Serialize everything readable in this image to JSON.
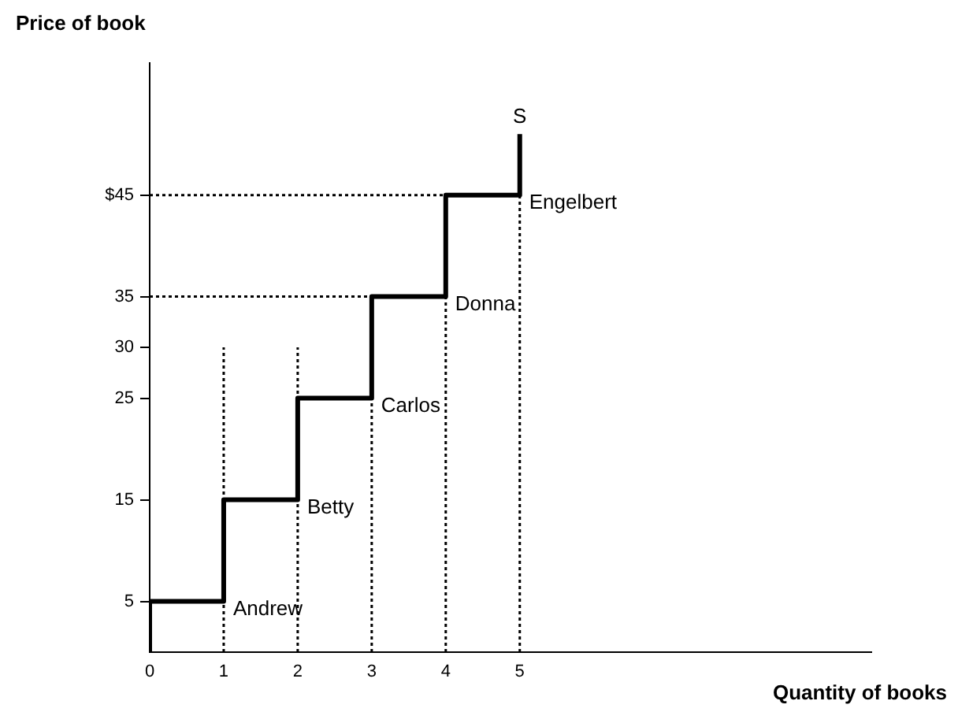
{
  "chart_data": {
    "type": "line",
    "xlabel": "Quantity of books",
    "ylabel": "Price of book",
    "xlim": [
      0,
      9.75
    ],
    "ylim": [
      0,
      58
    ],
    "xticks": [
      0,
      1,
      2,
      3,
      4,
      5
    ],
    "yticks": [
      5,
      15,
      25,
      30,
      35,
      {
        "value": 45,
        "label": "$45"
      }
    ],
    "marker": "none",
    "series": [
      {
        "type": "line",
        "color": "#000000",
        "line_style": "solid",
        "x": [
          0,
          0,
          1,
          1,
          2,
          2,
          3,
          3,
          4,
          4,
          5,
          5
        ],
        "values": [
          0,
          5,
          5,
          15,
          15,
          25,
          25,
          35,
          35,
          45,
          45,
          51
        ]
      },
      {
        "type": "line",
        "color": "#000000",
        "line_style": "dotted",
        "x": [
          1,
          1
        ],
        "values": [
          0,
          30
        ]
      },
      {
        "type": "line",
        "color": "#000000",
        "line_style": "dotted",
        "x": [
          2,
          2
        ],
        "values": [
          0,
          30
        ]
      },
      {
        "type": "line",
        "color": "#000000",
        "line_style": "dotted",
        "x": [
          3,
          3
        ],
        "values": [
          0,
          35
        ]
      },
      {
        "type": "line",
        "color": "#000000",
        "line_style": "dotted",
        "x": [
          4,
          4
        ],
        "values": [
          0,
          35
        ]
      },
      {
        "type": "line",
        "color": "#000000",
        "line_style": "dotted",
        "x": [
          5,
          5
        ],
        "values": [
          0,
          45
        ]
      },
      {
        "type": "line",
        "color": "#000000",
        "line_style": "dotted",
        "x": [
          0,
          3
        ],
        "values": [
          35,
          35
        ]
      },
      {
        "type": "line",
        "color": "#000000",
        "line_style": "dotted",
        "x": [
          0,
          4
        ],
        "values": [
          45,
          45
        ]
      }
    ],
    "annotations": [
      {
        "text": "S",
        "x": 5,
        "y": 51
      },
      {
        "text": "Andrew",
        "x": 1,
        "y": 5
      },
      {
        "text": "Betty",
        "x": 2,
        "y": 15
      },
      {
        "text": "Carlos",
        "x": 3,
        "y": 25
      },
      {
        "text": "Donna",
        "x": 4,
        "y": 35
      },
      {
        "text": "Engelbert",
        "x": 5,
        "y": 45
      }
    ]
  }
}
